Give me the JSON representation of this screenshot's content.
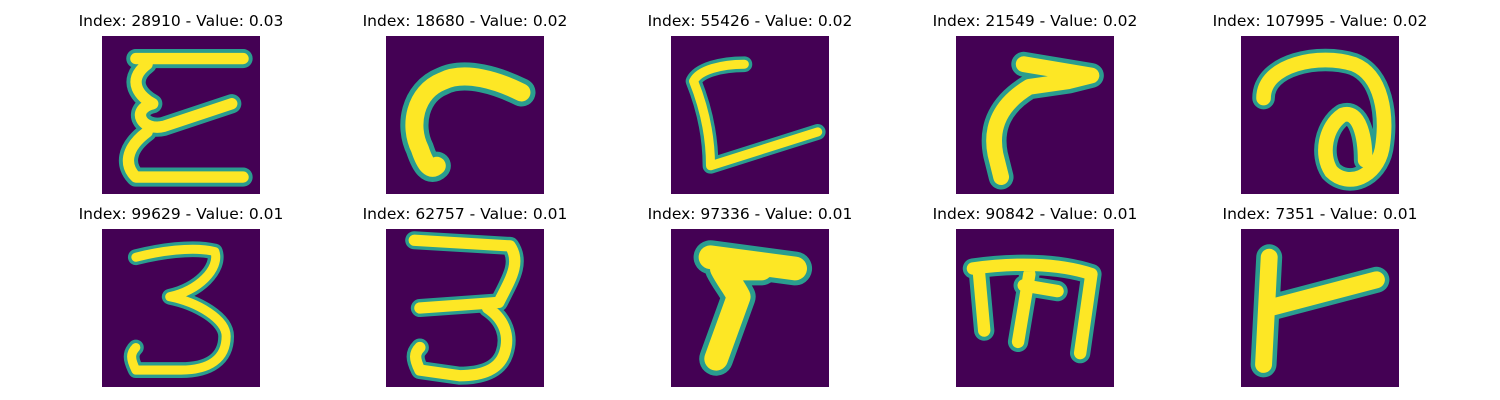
{
  "colors": {
    "background": "#440154",
    "foreground": "#fde725",
    "edge": "#2a9d8f"
  },
  "panels": [
    {
      "index": "28910",
      "value": "0.03",
      "title": "Index: 28910 - Value: 0.03"
    },
    {
      "index": "18680",
      "value": "0.02",
      "title": "Index: 18680 - Value: 0.02"
    },
    {
      "index": "55426",
      "value": "0.02",
      "title": "Index: 55426 - Value: 0.02"
    },
    {
      "index": "21549",
      "value": "0.02",
      "title": "Index: 21549 - Value: 0.02"
    },
    {
      "index": "107995",
      "value": "0.02",
      "title": "Index: 107995 - Value: 0.02"
    },
    {
      "index": "99629",
      "value": "0.01",
      "title": "Index: 99629 - Value: 0.01"
    },
    {
      "index": "62757",
      "value": "0.01",
      "title": "Index: 62757 - Value: 0.01"
    },
    {
      "index": "97336",
      "value": "0.01",
      "title": "Index: 97336 - Value: 0.01"
    },
    {
      "index": "90842",
      "value": "0.01",
      "title": "Index: 90842 - Value: 0.01"
    },
    {
      "index": "7351",
      "value": "0.01",
      "title": "Index: 7351 - Value: 0.01"
    }
  ]
}
